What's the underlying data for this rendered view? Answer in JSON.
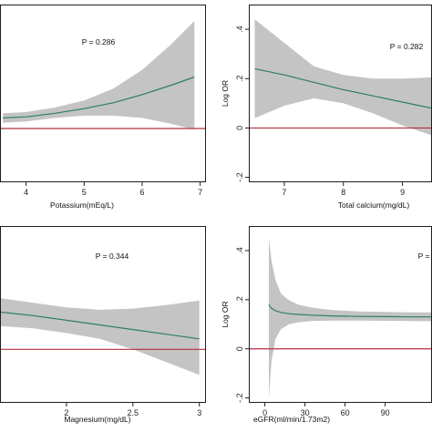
{
  "colors": {
    "ci_band": "#c4c4c4",
    "fit_line": "#2e7d6b",
    "reference_line": "#b1303e",
    "frame": "#1e1e1e",
    "background": "#ffffff"
  },
  "chart_data": [
    {
      "type": "area",
      "panel": "top-left",
      "title": "",
      "p_value": "P = 0.286",
      "xlabel": "Potassium(mEq/L)",
      "ylabel": "",
      "xlim": [
        3.55,
        7.1
      ],
      "ylim": [
        -0.23,
        0.53
      ],
      "x_ticks": [
        "4",
        "5",
        "6",
        "7"
      ],
      "y_ticks": [],
      "reference_y": 0,
      "grid": false,
      "series": [
        {
          "x": [
            3.6,
            4.0,
            4.5,
            5.0,
            5.5,
            6.0,
            6.5,
            6.9
          ],
          "fit": [
            0.045,
            0.05,
            0.065,
            0.085,
            0.11,
            0.145,
            0.185,
            0.22
          ],
          "ci_low": [
            0.025,
            0.03,
            0.045,
            0.055,
            0.055,
            0.045,
            0.02,
            -0.005
          ],
          "ci_high": [
            0.065,
            0.07,
            0.09,
            0.12,
            0.17,
            0.25,
            0.36,
            0.46
          ]
        }
      ]
    },
    {
      "type": "area",
      "panel": "top-right",
      "title": "",
      "p_value": "P = 0.282",
      "xlabel": "Total calcium(mg/dL)",
      "ylabel": "Log OR",
      "xlim": [
        6.4,
        9.5
      ],
      "ylim": [
        -0.22,
        0.5
      ],
      "x_ticks": [
        "7",
        "8",
        "9"
      ],
      "y_ticks": [
        "-.2",
        "0",
        ".2",
        ".4"
      ],
      "reference_y": 0,
      "grid": false,
      "series": [
        {
          "x": [
            6.5,
            7.0,
            7.5,
            8.0,
            8.5,
            9.0,
            9.5
          ],
          "fit": [
            0.24,
            0.215,
            0.185,
            0.155,
            0.13,
            0.105,
            0.08
          ],
          "ci_low": [
            0.04,
            0.09,
            0.12,
            0.1,
            0.06,
            0.01,
            -0.03
          ],
          "ci_high": [
            0.44,
            0.345,
            0.25,
            0.215,
            0.2,
            0.2,
            0.205
          ]
        }
      ]
    },
    {
      "type": "area",
      "panel": "bottom-left",
      "title": "",
      "p_value": "P = 0.344",
      "xlabel": "Magnesium(mg/dL)",
      "ylabel": "",
      "xlim": [
        1.5,
        3.05
      ],
      "ylim": [
        -0.23,
        0.53
      ],
      "x_ticks": [
        "2",
        "2.5",
        "3"
      ],
      "y_ticks": [],
      "reference_y": 0,
      "grid": false,
      "series": [
        {
          "x": [
            1.5,
            1.75,
            2.0,
            2.25,
            2.5,
            2.75,
            3.0
          ],
          "fit": [
            0.16,
            0.145,
            0.125,
            0.105,
            0.085,
            0.065,
            0.045
          ],
          "ci_low": [
            0.1,
            0.09,
            0.07,
            0.045,
            0.0,
            -0.055,
            -0.11
          ],
          "ci_high": [
            0.22,
            0.2,
            0.18,
            0.17,
            0.175,
            0.19,
            0.21
          ]
        }
      ]
    },
    {
      "type": "area",
      "panel": "bottom-right",
      "title": "",
      "p_value": "P = ",
      "xlabel": "eGFR(ml/min/1.73m2)",
      "ylabel": "Log OR",
      "xlim": [
        -12,
        125
      ],
      "ylim": [
        -0.22,
        0.5
      ],
      "x_ticks": [
        "0",
        "30",
        "60",
        "90"
      ],
      "y_ticks": [
        "-.2",
        "0",
        ".2",
        ".4"
      ],
      "reference_y": 0,
      "grid": false,
      "series": [
        {
          "x": [
            3,
            5,
            8,
            12,
            18,
            25,
            35,
            50,
            70,
            90,
            110,
            125
          ],
          "fit": [
            0.18,
            0.165,
            0.155,
            0.148,
            0.143,
            0.14,
            0.137,
            0.134,
            0.132,
            0.131,
            0.13,
            0.13
          ],
          "ci_low": [
            -0.2,
            -0.05,
            0.04,
            0.08,
            0.1,
            0.108,
            0.113,
            0.115,
            0.115,
            0.114,
            0.113,
            0.112
          ],
          "ci_high": [
            0.45,
            0.36,
            0.28,
            0.225,
            0.198,
            0.18,
            0.168,
            0.158,
            0.152,
            0.15,
            0.148,
            0.148
          ]
        }
      ]
    }
  ]
}
